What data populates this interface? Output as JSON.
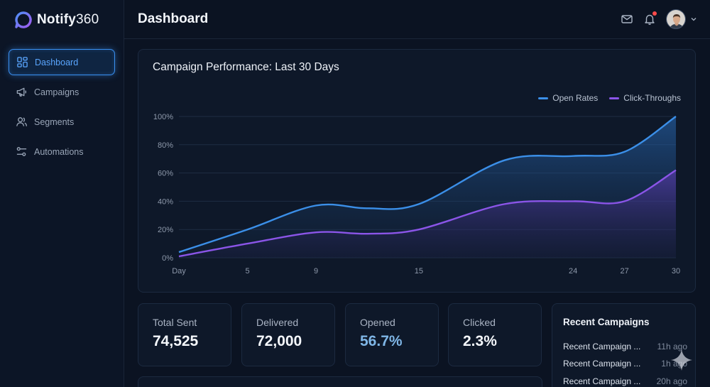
{
  "app": {
    "name_bold": "Notify",
    "name_light": "360"
  },
  "sidebar": {
    "items": [
      {
        "label": "Dashboard",
        "icon": "dashboard-icon",
        "active": true
      },
      {
        "label": "Campaigns",
        "icon": "megaphone-icon",
        "active": false
      },
      {
        "label": "Segments",
        "icon": "users-icon",
        "active": false
      },
      {
        "label": "Automations",
        "icon": "sliders-icon",
        "active": false
      }
    ]
  },
  "header": {
    "title": "Dashboard",
    "icons": [
      "mail-icon",
      "bell-icon",
      "avatar",
      "chevron-down-icon"
    ],
    "notification_dot_color": "#ff4a4a"
  },
  "chart": {
    "title": "Campaign Performance: Last 30 Days",
    "legend": [
      {
        "label": "Open Rates",
        "color": "#3b8fe8"
      },
      {
        "label": "Click-Throughs",
        "color": "#8b55e8"
      }
    ]
  },
  "chart_data": {
    "type": "area",
    "title": "Campaign Performance: Last 30 Days",
    "x_tick_labels": [
      "Day",
      "5",
      "9",
      "15",
      "24",
      "27",
      "30"
    ],
    "x": [
      1,
      5,
      9,
      12,
      15,
      20,
      24,
      27,
      30
    ],
    "y_tick_labels": [
      "0%",
      "20%",
      "40%",
      "60%",
      "80%",
      "100%"
    ],
    "ylim": [
      0,
      100
    ],
    "grid": true,
    "legend_position": "top-right",
    "series": [
      {
        "name": "Open Rates",
        "color": "#3b8fe8",
        "values": [
          4,
          20,
          37,
          35,
          38,
          69,
          72,
          75,
          100
        ]
      },
      {
        "name": "Click-Throughs",
        "color": "#8b55e8",
        "values": [
          1,
          10,
          18,
          17,
          20,
          38,
          40,
          40,
          62
        ]
      }
    ]
  },
  "stats": [
    {
      "label": "Total Sent",
      "value": "74,525",
      "color": "#f4f7fb"
    },
    {
      "label": "Delivered",
      "value": "72,000",
      "color": "#f4f7fb"
    },
    {
      "label": "Opened",
      "value": "56.7%",
      "color": "#7fb6e6"
    },
    {
      "label": "Clicked",
      "value": "2.3%",
      "color": "#f4f7fb"
    }
  ],
  "recent": {
    "title": "Recent Campaigns",
    "items": [
      {
        "name": "Recent Campaign ...",
        "time": "11h ago"
      },
      {
        "name": "Recent Campaign ...",
        "time": "1h ago"
      },
      {
        "name": "Recent Campaign ...",
        "time": "20h ago"
      }
    ]
  }
}
